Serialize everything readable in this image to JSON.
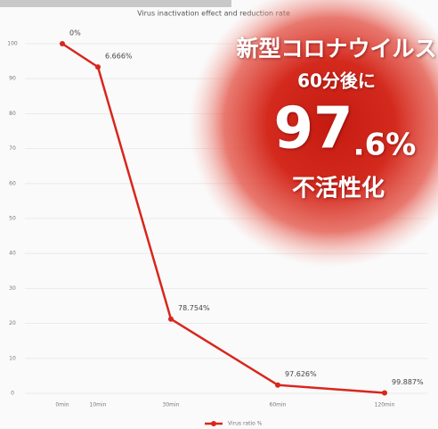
{
  "chart_data": {
    "type": "line",
    "title": "Virus inactivation effect and reduction rate",
    "categories": [
      "0min",
      "10min",
      "30min",
      "60min",
      "120min"
    ],
    "series": [
      {
        "name": "Virus ratio %",
        "color": "#d9261c",
        "values": [
          100,
          93.334,
          21.246,
          2.374,
          0.113
        ]
      }
    ],
    "annotations": [
      "0%",
      "6.666%",
      "78.754%",
      "97.626%",
      "99.887%"
    ],
    "ylim": [
      0,
      100
    ],
    "yticks": [
      0,
      10,
      20,
      30,
      40,
      50,
      60,
      70,
      80,
      90,
      100
    ],
    "grid": true
  },
  "overlay": {
    "line1": "新型コロナウイルス",
    "line2": "60分後に",
    "big": "97",
    "small": ".6%",
    "line3": "不活性化"
  }
}
